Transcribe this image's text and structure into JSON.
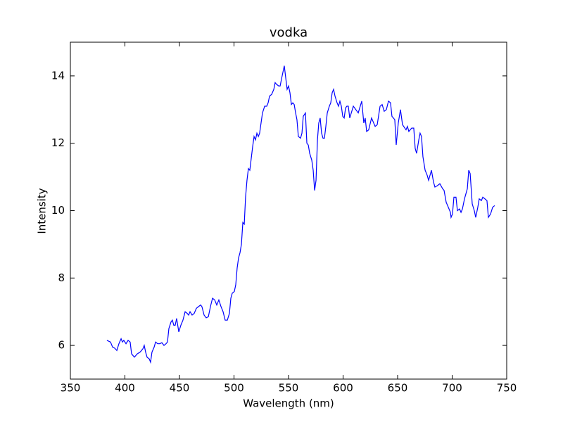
{
  "chart_data": {
    "type": "line",
    "title": "vodka",
    "xlabel": "Wavelength (nm)",
    "ylabel": "Intensity",
    "xlim": [
      350,
      750
    ],
    "xticks": [
      350,
      400,
      450,
      500,
      550,
      600,
      650,
      700,
      750
    ],
    "ylim": [
      5,
      15
    ],
    "yticks": [
      6,
      8,
      10,
      12,
      14
    ],
    "series": [
      {
        "color": "#0000ff",
        "x": [
          383.5,
          386.8,
          388.7,
          390.6,
          392.6,
          394.5,
          396.5,
          397.7,
          399.0,
          401.0,
          402.9,
          404.8,
          406.1,
          408.7,
          411.3,
          413.9,
          416.5,
          417.7,
          419.0,
          420.3,
          422.3,
          423.5,
          424.8,
          426.8,
          428.1,
          430.0,
          431.9,
          433.9,
          435.8,
          437.7,
          439.0,
          440.3,
          442.3,
          443.5,
          444.8,
          446.1,
          447.4,
          449.4,
          451.3,
          453.2,
          455.2,
          457.1,
          458.4,
          459.7,
          461.6,
          463.5,
          465.5,
          467.4,
          469.4,
          470.6,
          472.6,
          474.5,
          476.5,
          478.4,
          480.3,
          482.3,
          484.2,
          486.1,
          488.1,
          490.0,
          491.9,
          493.9,
          495.8,
          497.1,
          498.4,
          500.3,
          501.6,
          502.9,
          504.2,
          505.5,
          506.8,
          508.1,
          509.4,
          510.6,
          511.9,
          513.2,
          514.5,
          515.8,
          517.1,
          518.4,
          519.7,
          521.0,
          522.3,
          523.5,
          524.8,
          526.1,
          528.1,
          530.0,
          531.3,
          532.6,
          534.5,
          536.5,
          537.7,
          539.0,
          541.0,
          542.3,
          543.5,
          544.8,
          546.1,
          547.4,
          548.7,
          550.0,
          551.3,
          552.6,
          553.9,
          555.2,
          556.5,
          557.7,
          559.0,
          561.0,
          562.3,
          563.5,
          565.5,
          566.8,
          568.1,
          569.4,
          571.3,
          572.6,
          573.9,
          575.2,
          576.5,
          577.7,
          579.0,
          580.3,
          581.6,
          582.9,
          584.2,
          585.5,
          587.4,
          588.7,
          590.0,
          591.3,
          592.6,
          594.5,
          595.8,
          597.1,
          598.4,
          599.7,
          601.0,
          602.3,
          603.5,
          604.8,
          606.1,
          609.4,
          613.9,
          617.1,
          619.0,
          620.3,
          621.6,
          623.5,
          626.1,
          629.4,
          631.3,
          633.9,
          635.8,
          637.7,
          639.7,
          641.6,
          643.5,
          644.8,
          647.4,
          648.7,
          650.6,
          652.6,
          654.5,
          657.7,
          659.0,
          660.3,
          662.9,
          664.8,
          666.1,
          667.4,
          669.4,
          670.6,
          671.9,
          673.2,
          675.2,
          677.1,
          678.4,
          681.0,
          682.9,
          684.2,
          686.8,
          688.7,
          691.3,
          692.6,
          694.5,
          696.5,
          698.4,
          699.0,
          700.3,
          701.6,
          703.5,
          704.8,
          706.8,
          708.1,
          709.4,
          711.3,
          712.6,
          713.9,
          715.2,
          716.5,
          718.4,
          720.3,
          721.6,
          723.5,
          724.8,
          726.8,
          728.1,
          730.0,
          731.9,
          733.2,
          735.2,
          737.1,
          739.0
        ],
        "values": [
          6.15,
          6.1,
          5.95,
          5.92,
          5.85,
          6.05,
          6.2,
          6.1,
          6.15,
          6.05,
          6.15,
          6.1,
          5.75,
          5.65,
          5.75,
          5.8,
          5.9,
          6.0,
          5.8,
          5.65,
          5.6,
          5.5,
          5.8,
          5.95,
          6.1,
          6.05,
          6.05,
          6.08,
          6.0,
          6.05,
          6.1,
          6.5,
          6.7,
          6.75,
          6.6,
          6.6,
          6.8,
          6.4,
          6.6,
          6.75,
          7.0,
          6.95,
          6.9,
          7.0,
          6.9,
          6.95,
          7.1,
          7.15,
          7.2,
          7.15,
          6.9,
          6.82,
          6.85,
          7.15,
          7.4,
          7.35,
          7.2,
          7.35,
          7.15,
          7.0,
          6.75,
          6.75,
          6.95,
          7.4,
          7.55,
          7.6,
          7.8,
          8.3,
          8.6,
          8.75,
          9.0,
          9.65,
          9.6,
          10.4,
          10.9,
          11.25,
          11.2,
          11.55,
          11.9,
          12.2,
          12.1,
          12.3,
          12.2,
          12.3,
          12.6,
          12.9,
          13.1,
          13.1,
          13.2,
          13.4,
          13.45,
          13.6,
          13.8,
          13.75,
          13.7,
          13.7,
          13.9,
          14.1,
          14.3,
          13.95,
          13.6,
          13.7,
          13.5,
          13.15,
          13.2,
          13.15,
          12.9,
          12.7,
          12.2,
          12.15,
          12.3,
          12.8,
          12.9,
          12.0,
          11.95,
          11.7,
          11.5,
          11.2,
          10.6,
          10.9,
          12.1,
          12.6,
          12.75,
          12.3,
          12.15,
          12.15,
          12.5,
          12.9,
          13.1,
          13.2,
          13.5,
          13.6,
          13.4,
          13.2,
          13.1,
          13.25,
          13.1,
          12.8,
          12.75,
          13.05,
          13.1,
          13.1,
          12.75,
          13.1,
          12.9,
          13.25,
          12.6,
          12.75,
          12.35,
          12.4,
          12.75,
          12.5,
          12.55,
          13.1,
          13.15,
          12.95,
          13.0,
          13.25,
          13.2,
          12.8,
          12.7,
          11.95,
          12.6,
          13.0,
          12.55,
          12.4,
          12.5,
          12.35,
          12.45,
          12.45,
          11.85,
          11.7,
          12.1,
          12.3,
          12.2,
          11.6,
          11.2,
          11.05,
          10.9,
          11.2,
          10.85,
          10.7,
          10.75,
          10.8,
          10.65,
          10.6,
          10.25,
          10.1,
          9.95,
          9.8,
          9.9,
          10.4,
          10.4,
          10.0,
          10.05,
          9.95,
          10.05,
          10.35,
          10.5,
          10.65,
          11.2,
          11.1,
          10.2,
          10.0,
          9.8,
          10.1,
          10.35,
          10.3,
          10.4,
          10.35,
          10.3,
          9.8,
          9.9,
          10.1,
          10.15
        ]
      }
    ]
  }
}
